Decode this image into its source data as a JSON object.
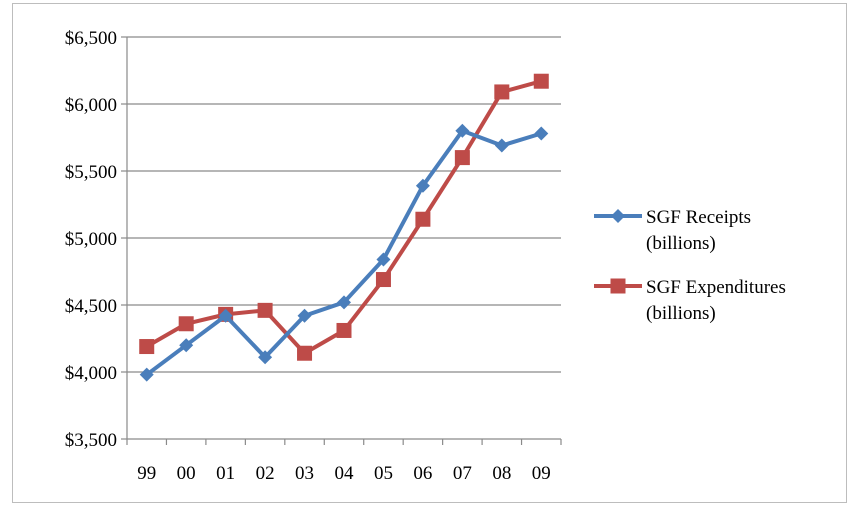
{
  "chart_data": {
    "type": "line",
    "title": "",
    "xlabel": "",
    "ylabel": "",
    "categories": [
      "99",
      "00",
      "01",
      "02",
      "03",
      "04",
      "05",
      "06",
      "07",
      "08",
      "09"
    ],
    "ylim": [
      3500,
      6500
    ],
    "yticks": [
      3500,
      4000,
      4500,
      5000,
      5500,
      6000,
      6500
    ],
    "ytick_labels": [
      "$3,500",
      "$4,000",
      "$4,500",
      "$5,000",
      "$5,500",
      "$6,000",
      "$6,500"
    ],
    "grid": "horizontal",
    "legend_position": "right",
    "series": [
      {
        "name": "SGF Receipts",
        "name_line2": "(billions)",
        "color": "#4a7ebb",
        "marker": "diamond",
        "values": [
          3980,
          4200,
          4420,
          4110,
          4420,
          4520,
          4840,
          5390,
          5800,
          5690,
          5780
        ]
      },
      {
        "name": "SGF Expenditures",
        "name_line2": "(billions)",
        "color": "#be4b48",
        "marker": "square",
        "values": [
          4190,
          4360,
          4430,
          4460,
          4140,
          4310,
          4690,
          5140,
          5600,
          6090,
          6170
        ]
      }
    ]
  }
}
